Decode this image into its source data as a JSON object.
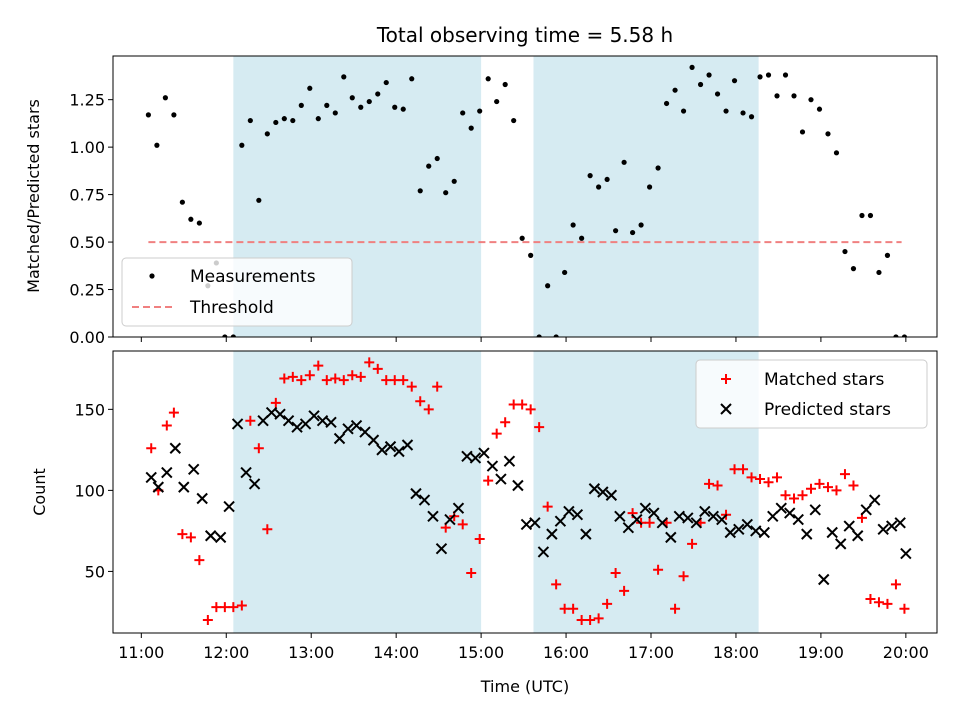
{
  "figure": {
    "title": "Total observing time = 5.58 h",
    "xlabel": "Time (UTC)"
  },
  "chart_data": [
    {
      "type": "scatter",
      "ylabel": "Matched/Predicted stars",
      "ylim": [
        0,
        1.48
      ],
      "yticks": [
        0.0,
        0.25,
        0.5,
        0.75,
        1.0,
        1.25
      ],
      "ytick_labels": [
        "0.00",
        "0.25",
        "0.50",
        "0.75",
        "1.00",
        "1.25"
      ],
      "legend": {
        "placement": "lower-left",
        "entries": [
          "Measurements",
          "Threshold"
        ]
      },
      "threshold": {
        "name": "Threshold",
        "y": 0.5,
        "x_start": "11:05",
        "x_end": "19:57",
        "color": "#f08080"
      },
      "series": [
        {
          "name": "Measurements",
          "color": "#000000",
          "x": [
            "11:05",
            "11:11",
            "11:17",
            "11:23",
            "11:29",
            "11:35",
            "11:41",
            "11:47",
            "11:53",
            "11:59",
            "12:05",
            "12:11",
            "12:17",
            "12:23",
            "12:29",
            "12:35",
            "12:41",
            "12:47",
            "12:53",
            "12:59",
            "13:05",
            "13:11",
            "13:17",
            "13:23",
            "13:29",
            "13:35",
            "13:41",
            "13:47",
            "13:53",
            "13:59",
            "14:05",
            "14:11",
            "14:17",
            "14:23",
            "14:29",
            "14:35",
            "14:41",
            "14:47",
            "14:53",
            "14:59",
            "15:05",
            "15:11",
            "15:17",
            "15:23",
            "15:29",
            "15:35",
            "15:41",
            "15:47",
            "15:53",
            "15:59",
            "16:05",
            "16:11",
            "16:17",
            "16:23",
            "16:29",
            "16:35",
            "16:41",
            "16:47",
            "16:53",
            "16:59",
            "17:05",
            "17:11",
            "17:17",
            "17:23",
            "17:29",
            "17:35",
            "17:41",
            "17:47",
            "17:53",
            "17:59",
            "18:05",
            "18:11",
            "18:17",
            "18:23",
            "18:29",
            "18:35",
            "18:41",
            "18:47",
            "18:53",
            "18:59",
            "19:05",
            "19:11",
            "19:17",
            "19:23",
            "19:29",
            "19:35",
            "19:41",
            "19:47",
            "19:53",
            "19:59"
          ],
          "values": [
            1.17,
            1.01,
            1.26,
            1.17,
            0.71,
            0.62,
            0.6,
            0.27,
            0.39,
            0.0,
            0.0,
            1.01,
            1.14,
            0.72,
            1.07,
            1.13,
            1.15,
            1.14,
            1.22,
            1.31,
            1.15,
            1.22,
            1.18,
            1.37,
            1.26,
            1.21,
            1.24,
            1.28,
            1.34,
            1.21,
            1.2,
            1.36,
            0.77,
            0.9,
            0.94,
            0.76,
            0.82,
            1.18,
            1.1,
            1.19,
            1.36,
            1.24,
            1.33,
            1.14,
            0.52,
            0.43,
            0.0,
            0.27,
            0.0,
            0.34,
            0.59,
            0.52,
            0.85,
            0.79,
            0.83,
            0.56,
            0.92,
            0.55,
            0.59,
            0.79,
            0.89,
            1.23,
            1.3,
            1.19,
            1.42,
            1.33,
            1.38,
            1.28,
            1.19,
            1.35,
            1.18,
            1.16,
            1.37,
            1.38,
            1.27,
            1.38,
            1.27,
            1.08,
            1.25,
            1.2,
            1.07,
            0.97,
            0.45,
            0.36,
            0.64,
            0.64,
            0.34,
            0.43,
            0.0,
            0.0
          ]
        }
      ]
    },
    {
      "type": "scatter",
      "ylabel": "Count",
      "xlabel": "Time (UTC)",
      "ylim": [
        12,
        186
      ],
      "yticks": [
        50,
        100,
        150
      ],
      "ytick_labels": [
        "50",
        "100",
        "150"
      ],
      "xticks": [
        "11:00",
        "12:00",
        "13:00",
        "14:00",
        "15:00",
        "16:00",
        "17:00",
        "18:00",
        "19:00",
        "20:00"
      ],
      "legend": {
        "placement": "upper-right",
        "entries": [
          "Matched stars",
          "Predicted stars"
        ]
      },
      "series": [
        {
          "name": "Matched stars",
          "color": "#ff0000",
          "marker": "+",
          "x": [
            "11:07",
            "11:12",
            "11:18",
            "11:23",
            "11:29",
            "11:35",
            "11:41",
            "11:47",
            "11:53",
            "11:59",
            "12:05",
            "12:11",
            "12:17",
            "12:23",
            "12:29",
            "12:35",
            "12:41",
            "12:47",
            "12:53",
            "12:59",
            "13:05",
            "13:11",
            "13:17",
            "13:23",
            "13:29",
            "13:35",
            "13:41",
            "13:47",
            "13:53",
            "13:59",
            "14:05",
            "14:11",
            "14:17",
            "14:23",
            "14:29",
            "14:35",
            "14:41",
            "14:47",
            "14:53",
            "14:59",
            "15:05",
            "15:11",
            "15:17",
            "15:23",
            "15:29",
            "15:35",
            "15:41",
            "15:47",
            "15:53",
            "15:59",
            "16:05",
            "16:11",
            "16:17",
            "16:23",
            "16:29",
            "16:35",
            "16:41",
            "16:47",
            "16:53",
            "16:59",
            "17:05",
            "17:11",
            "17:17",
            "17:23",
            "17:29",
            "17:35",
            "17:41",
            "17:47",
            "17:53",
            "17:59",
            "18:05",
            "18:11",
            "18:17",
            "18:23",
            "18:29",
            "18:35",
            "18:41",
            "18:47",
            "18:53",
            "18:59",
            "19:05",
            "19:11",
            "19:17",
            "19:23",
            "19:29",
            "19:35",
            "19:41",
            "19:47",
            "19:53",
            "19:59"
          ],
          "values": [
            126,
            100,
            140,
            148,
            73,
            71,
            57,
            20,
            28,
            28,
            28,
            29,
            143,
            126,
            76,
            154,
            169,
            170,
            168,
            171,
            177,
            168,
            169,
            168,
            171,
            170,
            179,
            175,
            168,
            168,
            168,
            164,
            155,
            150,
            164,
            77,
            84,
            79,
            49,
            70,
            106,
            135,
            142,
            153,
            153,
            150,
            139,
            90,
            42,
            27,
            27,
            20,
            20,
            21,
            30,
            49,
            38,
            86,
            80,
            80,
            51,
            80,
            27,
            47,
            67,
            80,
            104,
            103,
            85,
            113,
            113,
            108,
            107,
            105,
            108,
            97,
            95,
            97,
            101,
            104,
            102,
            100,
            110,
            103,
            83,
            33,
            31,
            30,
            42,
            27
          ]
        },
        {
          "name": "Predicted stars",
          "color": "#000000",
          "marker": "x",
          "x": [
            "11:07",
            "11:12",
            "11:18",
            "11:24",
            "11:30",
            "11:37",
            "11:43",
            "11:49",
            "11:56",
            "12:02",
            "12:08",
            "12:14",
            "12:20",
            "12:26",
            "12:32",
            "12:38",
            "12:44",
            "12:50",
            "12:56",
            "13:02",
            "13:08",
            "13:14",
            "13:20",
            "13:26",
            "13:32",
            "13:38",
            "13:44",
            "13:50",
            "13:56",
            "14:02",
            "14:08",
            "14:14",
            "14:20",
            "14:26",
            "14:32",
            "14:38",
            "14:44",
            "14:50",
            "14:56",
            "15:02",
            "15:08",
            "15:14",
            "15:20",
            "15:26",
            "15:32",
            "15:38",
            "15:44",
            "15:50",
            "15:56",
            "16:02",
            "16:08",
            "16:14",
            "16:20",
            "16:26",
            "16:32",
            "16:38",
            "16:44",
            "16:50",
            "16:56",
            "17:02",
            "17:08",
            "17:14",
            "17:20",
            "17:26",
            "17:32",
            "17:38",
            "17:44",
            "17:50",
            "17:56",
            "18:02",
            "18:08",
            "18:14",
            "18:20",
            "18:26",
            "18:32",
            "18:38",
            "18:44",
            "18:50",
            "18:56",
            "19:02",
            "19:08",
            "19:14",
            "19:20",
            "19:26",
            "19:32",
            "19:38",
            "19:44",
            "19:50",
            "19:56",
            "20:00"
          ],
          "values": [
            108,
            102,
            111,
            126,
            102,
            113,
            95,
            72,
            71,
            90,
            141,
            111,
            104,
            143,
            148,
            147,
            143,
            139,
            141,
            146,
            143,
            142,
            132,
            138,
            140,
            136,
            131,
            125,
            127,
            124,
            128,
            98,
            94,
            84,
            64,
            82,
            89,
            121,
            120,
            123,
            115,
            107,
            118,
            103,
            79,
            80,
            62,
            73,
            81,
            87,
            85,
            73,
            101,
            99,
            97,
            84,
            77,
            82,
            89,
            86,
            80,
            71,
            84,
            83,
            80,
            87,
            84,
            82,
            74,
            76,
            79,
            75,
            74,
            84,
            89,
            86,
            82,
            73,
            88,
            45,
            74,
            67,
            78,
            72,
            88,
            94,
            76,
            78,
            80,
            61
          ]
        }
      ]
    }
  ]
}
